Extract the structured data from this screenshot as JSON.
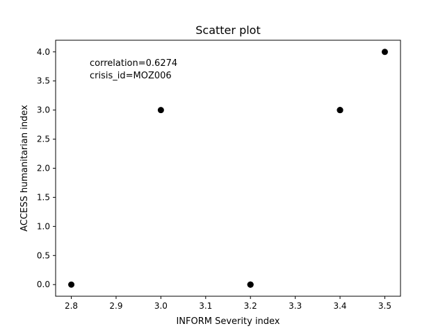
{
  "chart_data": {
    "type": "scatter",
    "title": "Scatter plot",
    "xlabel": "INFORM Severity index",
    "ylabel": "ACCESS humanitarian index",
    "xlim": [
      2.765,
      3.535
    ],
    "ylim": [
      -0.2,
      4.2
    ],
    "x_ticks": [
      "2.8",
      "2.9",
      "3.0",
      "3.1",
      "3.2",
      "3.3",
      "3.4",
      "3.5"
    ],
    "x_tick_values": [
      2.8,
      2.9,
      3.0,
      3.1,
      3.2,
      3.3,
      3.4,
      3.5
    ],
    "y_ticks": [
      "0.0",
      "0.5",
      "1.0",
      "1.5",
      "2.0",
      "2.5",
      "3.0",
      "3.5",
      "4.0"
    ],
    "y_tick_values": [
      0.0,
      0.5,
      1.0,
      1.5,
      2.0,
      2.5,
      3.0,
      3.5,
      4.0
    ],
    "points": [
      {
        "x": 2.8,
        "y": 0.0
      },
      {
        "x": 3.0,
        "y": 3.0
      },
      {
        "x": 3.2,
        "y": 0.0
      },
      {
        "x": 3.2,
        "y": 0.0
      },
      {
        "x": 3.2,
        "y": 0.0
      },
      {
        "x": 3.4,
        "y": 3.0
      },
      {
        "x": 3.4,
        "y": 3.0
      },
      {
        "x": 3.4,
        "y": 3.0
      },
      {
        "x": 3.5,
        "y": 4.0
      }
    ],
    "marker_color": "#000000",
    "annotations": [
      "correlation=0.6274",
      "crisis_id=MOZ006"
    ],
    "grid": false,
    "legend": "none"
  }
}
